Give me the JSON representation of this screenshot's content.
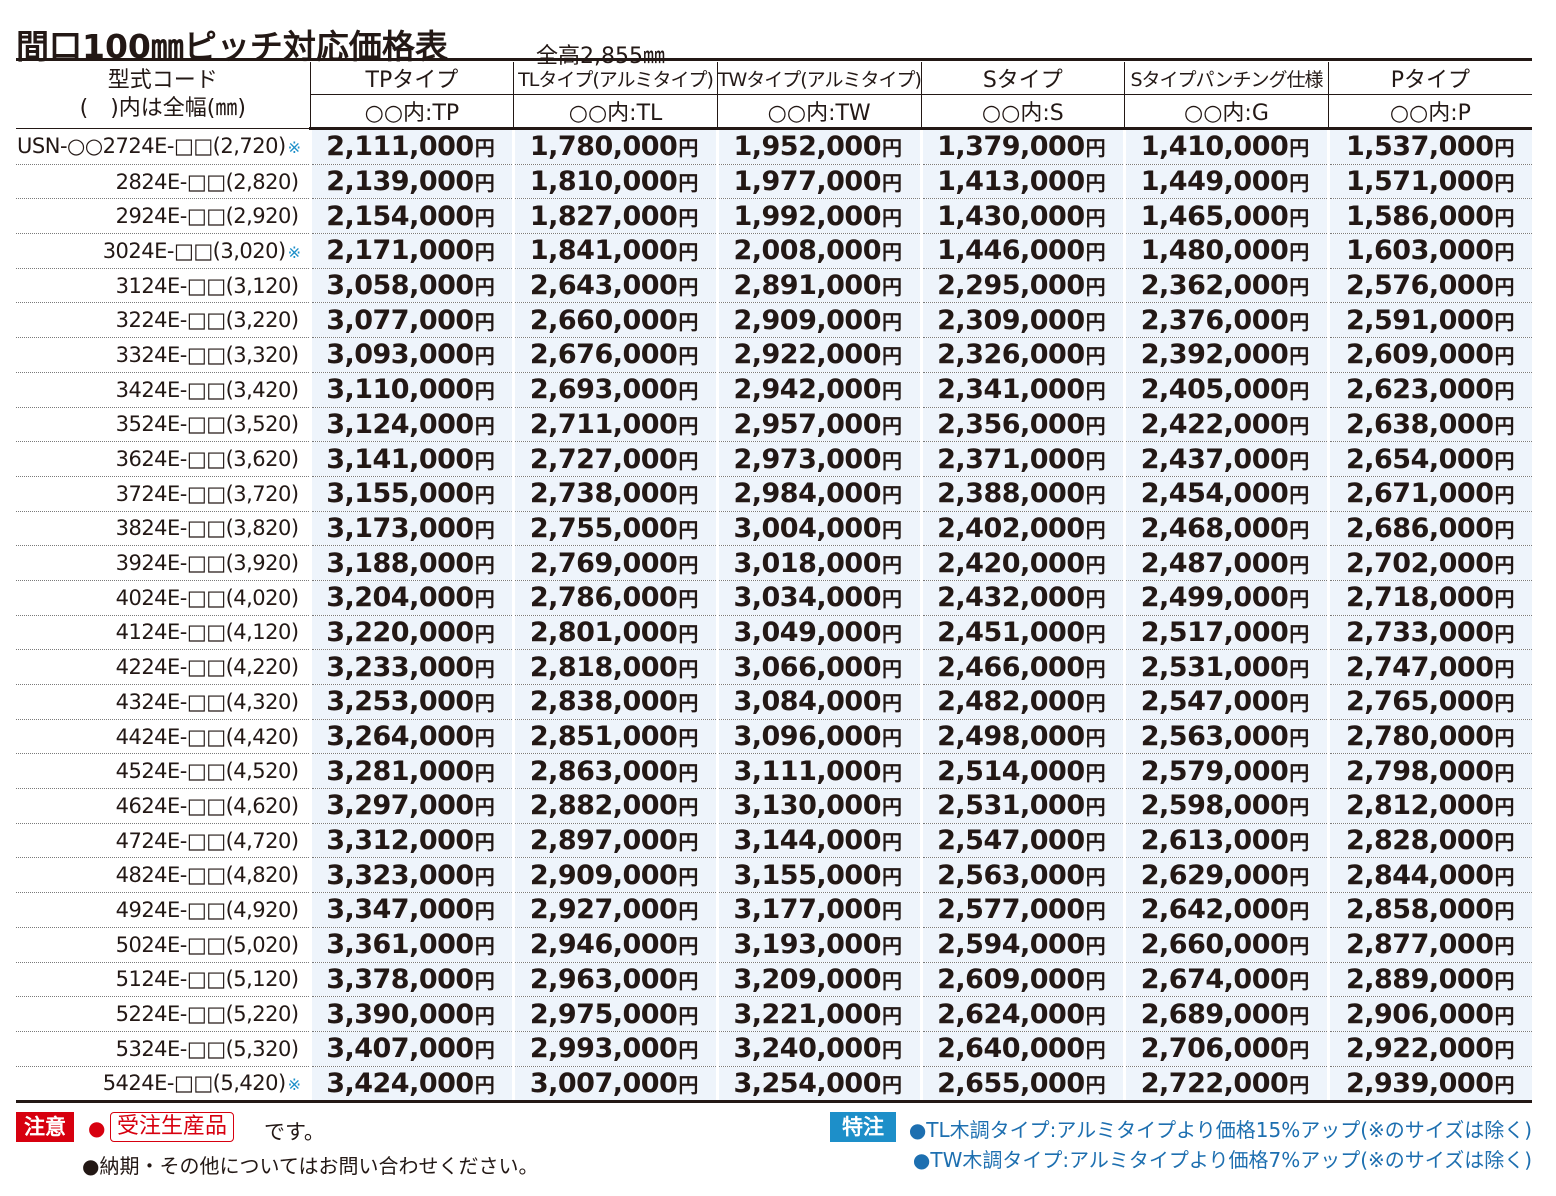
{
  "title": "間口100㎜ピッチ対応価格表",
  "subtitle": "全高2,855㎜",
  "header": {
    "code_label_line1": "型式コード",
    "code_label_line2": "(　)内は全幅(㎜)",
    "columns": [
      {
        "name": "TPタイプ",
        "code": "○○内:TP"
      },
      {
        "name": "TLタイプ(アルミタイプ)",
        "code": "○○内:TL"
      },
      {
        "name": "TWタイプ(アルミタイプ)",
        "code": "○○内:TW"
      },
      {
        "name": "Sタイプ",
        "code": "○○内:S"
      },
      {
        "name": "Sタイプパンチング仕様",
        "code": "○○内:G"
      },
      {
        "name": "Pタイプ",
        "code": "○○内:P"
      }
    ]
  },
  "yen": "円",
  "mark": "※",
  "rows": [
    {
      "code": "USN-○○2724E-□□(2,720)",
      "mark": "※",
      "prices": [
        "2,111,000",
        "1,780,000",
        "1,952,000",
        "1,379,000",
        "1,410,000",
        "1,537,000"
      ]
    },
    {
      "code": "2824E-□□(2,820)",
      "mark": "",
      "prices": [
        "2,139,000",
        "1,810,000",
        "1,977,000",
        "1,413,000",
        "1,449,000",
        "1,571,000"
      ]
    },
    {
      "code": "2924E-□□(2,920)",
      "mark": "",
      "prices": [
        "2,154,000",
        "1,827,000",
        "1,992,000",
        "1,430,000",
        "1,465,000",
        "1,586,000"
      ]
    },
    {
      "code": "3024E-□□(3,020)",
      "mark": "※",
      "prices": [
        "2,171,000",
        "1,841,000",
        "2,008,000",
        "1,446,000",
        "1,480,000",
        "1,603,000"
      ]
    },
    {
      "code": "3124E-□□(3,120)",
      "mark": "",
      "prices": [
        "3,058,000",
        "2,643,000",
        "2,891,000",
        "2,295,000",
        "2,362,000",
        "2,576,000"
      ]
    },
    {
      "code": "3224E-□□(3,220)",
      "mark": "",
      "prices": [
        "3,077,000",
        "2,660,000",
        "2,909,000",
        "2,309,000",
        "2,376,000",
        "2,591,000"
      ]
    },
    {
      "code": "3324E-□□(3,320)",
      "mark": "",
      "prices": [
        "3,093,000",
        "2,676,000",
        "2,922,000",
        "2,326,000",
        "2,392,000",
        "2,609,000"
      ]
    },
    {
      "code": "3424E-□□(3,420)",
      "mark": "",
      "prices": [
        "3,110,000",
        "2,693,000",
        "2,942,000",
        "2,341,000",
        "2,405,000",
        "2,623,000"
      ]
    },
    {
      "code": "3524E-□□(3,520)",
      "mark": "",
      "prices": [
        "3,124,000",
        "2,711,000",
        "2,957,000",
        "2,356,000",
        "2,422,000",
        "2,638,000"
      ]
    },
    {
      "code": "3624E-□□(3,620)",
      "mark": "",
      "prices": [
        "3,141,000",
        "2,727,000",
        "2,973,000",
        "2,371,000",
        "2,437,000",
        "2,654,000"
      ]
    },
    {
      "code": "3724E-□□(3,720)",
      "mark": "",
      "prices": [
        "3,155,000",
        "2,738,000",
        "2,984,000",
        "2,388,000",
        "2,454,000",
        "2,671,000"
      ]
    },
    {
      "code": "3824E-□□(3,820)",
      "mark": "",
      "prices": [
        "3,173,000",
        "2,755,000",
        "3,004,000",
        "2,402,000",
        "2,468,000",
        "2,686,000"
      ]
    },
    {
      "code": "3924E-□□(3,920)",
      "mark": "",
      "prices": [
        "3,188,000",
        "2,769,000",
        "3,018,000",
        "2,420,000",
        "2,487,000",
        "2,702,000"
      ]
    },
    {
      "code": "4024E-□□(4,020)",
      "mark": "",
      "prices": [
        "3,204,000",
        "2,786,000",
        "3,034,000",
        "2,432,000",
        "2,499,000",
        "2,718,000"
      ]
    },
    {
      "code": "4124E-□□(4,120)",
      "mark": "",
      "prices": [
        "3,220,000",
        "2,801,000",
        "3,049,000",
        "2,451,000",
        "2,517,000",
        "2,733,000"
      ]
    },
    {
      "code": "4224E-□□(4,220)",
      "mark": "",
      "prices": [
        "3,233,000",
        "2,818,000",
        "3,066,000",
        "2,466,000",
        "2,531,000",
        "2,747,000"
      ]
    },
    {
      "code": "4324E-□□(4,320)",
      "mark": "",
      "prices": [
        "3,253,000",
        "2,838,000",
        "3,084,000",
        "2,482,000",
        "2,547,000",
        "2,765,000"
      ]
    },
    {
      "code": "4424E-□□(4,420)",
      "mark": "",
      "prices": [
        "3,264,000",
        "2,851,000",
        "3,096,000",
        "2,498,000",
        "2,563,000",
        "2,780,000"
      ]
    },
    {
      "code": "4524E-□□(4,520)",
      "mark": "",
      "prices": [
        "3,281,000",
        "2,863,000",
        "3,111,000",
        "2,514,000",
        "2,579,000",
        "2,798,000"
      ]
    },
    {
      "code": "4624E-□□(4,620)",
      "mark": "",
      "prices": [
        "3,297,000",
        "2,882,000",
        "3,130,000",
        "2,531,000",
        "2,598,000",
        "2,812,000"
      ]
    },
    {
      "code": "4724E-□□(4,720)",
      "mark": "",
      "prices": [
        "3,312,000",
        "2,897,000",
        "3,144,000",
        "2,547,000",
        "2,613,000",
        "2,828,000"
      ]
    },
    {
      "code": "4824E-□□(4,820)",
      "mark": "",
      "prices": [
        "3,323,000",
        "2,909,000",
        "3,155,000",
        "2,563,000",
        "2,629,000",
        "2,844,000"
      ]
    },
    {
      "code": "4924E-□□(4,920)",
      "mark": "",
      "prices": [
        "3,347,000",
        "2,927,000",
        "3,177,000",
        "2,577,000",
        "2,642,000",
        "2,858,000"
      ]
    },
    {
      "code": "5024E-□□(5,020)",
      "mark": "",
      "prices": [
        "3,361,000",
        "2,946,000",
        "3,193,000",
        "2,594,000",
        "2,660,000",
        "2,877,000"
      ]
    },
    {
      "code": "5124E-□□(5,120)",
      "mark": "",
      "prices": [
        "3,378,000",
        "2,963,000",
        "3,209,000",
        "2,609,000",
        "2,674,000",
        "2,889,000"
      ]
    },
    {
      "code": "5224E-□□(5,220)",
      "mark": "",
      "prices": [
        "3,390,000",
        "2,975,000",
        "3,221,000",
        "2,624,000",
        "2,689,000",
        "2,906,000"
      ]
    },
    {
      "code": "5324E-□□(5,320)",
      "mark": "",
      "prices": [
        "3,407,000",
        "2,993,000",
        "3,240,000",
        "2,640,000",
        "2,706,000",
        "2,922,000"
      ]
    },
    {
      "code": "5424E-□□(5,420)",
      "mark": "※",
      "prices": [
        "3,424,000",
        "3,007,000",
        "3,254,000",
        "2,655,000",
        "2,722,000",
        "2,939,000"
      ]
    }
  ],
  "notes": {
    "caution_label": "注意",
    "bullet": "●",
    "order_made": "受注生産品",
    "desu": "です。",
    "delivery": "●納期・その他についてはお問い合わせください。",
    "special_label": "特注",
    "special_line1": "●TL木調タイプ:アルミタイプより価格15%アップ(※のサイズは除く)",
    "special_line2": "●TW木調タイプ:アルミタイプより価格7%アップ(※のサイズは除く)"
  },
  "colors": {
    "cell_bg": "#eef4fb",
    "accent_red": "#d7000f",
    "accent_blue": "#1d8fc9"
  }
}
